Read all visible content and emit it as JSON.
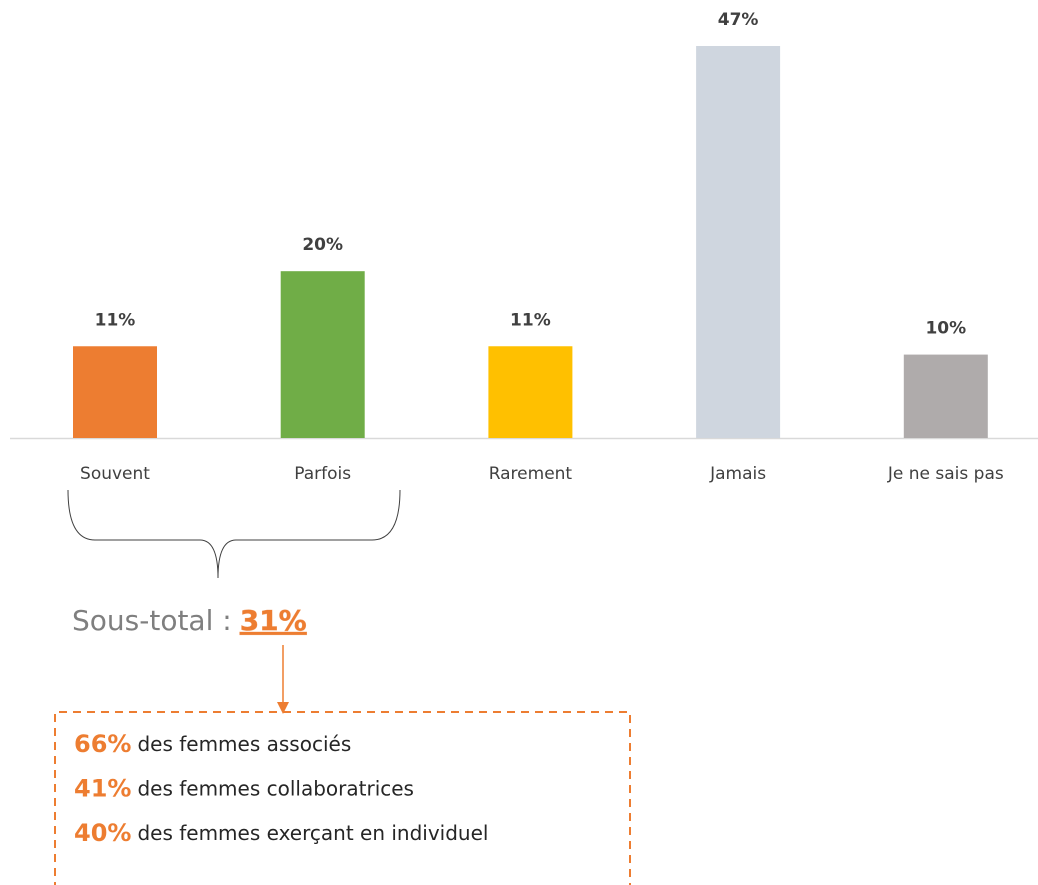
{
  "chart_data": {
    "type": "bar",
    "categories": [
      "Souvent",
      "Parfois",
      "Rarement",
      "Jamais",
      "Je ne sais pas"
    ],
    "values": [
      11,
      20,
      11,
      47,
      10
    ],
    "value_labels": [
      "11%",
      "20%",
      "11%",
      "47%",
      "10%"
    ],
    "colors": [
      "#ed7d31",
      "#70ad47",
      "#ffc000",
      "#cfd6df",
      "#afabab"
    ]
  },
  "subtotal": {
    "label": "Sous-total :",
    "value_label": "31%"
  },
  "breakdown": [
    {
      "value_label": "66%",
      "text": "des femmes associés"
    },
    {
      "value_label": "41%",
      "text": "des femmes collaboratrices"
    },
    {
      "value_label": "40%",
      "text": "des femmes exerçant en individuel"
    }
  ]
}
